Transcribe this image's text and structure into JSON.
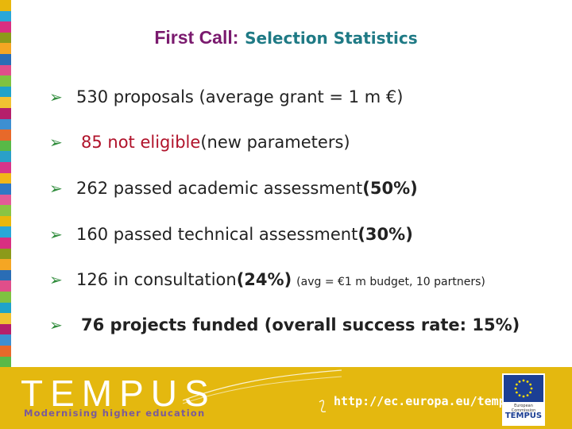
{
  "title": {
    "part1": "First Call:",
    "part2": "Selection Statistics"
  },
  "bullets": [
    {
      "segments": [
        {
          "text": "530 proposals (average grant = 1 m €)",
          "style": "normal"
        }
      ]
    },
    {
      "segments": [
        {
          "text": "85 not eligible",
          "style": "red"
        },
        {
          "text": " (new parameters)",
          "style": "normal"
        }
      ]
    },
    {
      "segments": [
        {
          "text": "262 passed academic assessment ",
          "style": "normal"
        },
        {
          "text": "(50%)",
          "style": "bold"
        }
      ]
    },
    {
      "segments": [
        {
          "text": "160 passed technical assessment ",
          "style": "normal"
        },
        {
          "text": "(30%)",
          "style": "bold"
        }
      ]
    },
    {
      "segments": [
        {
          "text": "126 in consultation ",
          "style": "normal"
        },
        {
          "text": "(24%)",
          "style": "bold"
        },
        {
          "text": "(avg = €1 m budget, 10 partners)",
          "style": "small"
        }
      ]
    },
    {
      "segments": [
        {
          "text": "76 projects funded (overall success rate: 15%)",
          "style": "bold"
        }
      ]
    }
  ],
  "bullet_icon": "arrow-bullet-icon",
  "footer": {
    "logo": "TEMPUS",
    "tagline": "Modernising higher education",
    "url": "http://ec.europa.eu/tempus",
    "eu_text": "European Commission",
    "eu_tempus": "TEMPUS"
  },
  "colors": {
    "title_part1": "#7a1a6e",
    "title_part2": "#1f7a85",
    "arrow": "#2e8b3a",
    "red_text": "#b0122a",
    "footer_bg": "#e4b80f",
    "stripe": [
      "#e8b70c",
      "#29a7d8",
      "#d92f81",
      "#8c9a1a",
      "#f5a623",
      "#2a6db5",
      "#e04e8a",
      "#7fc241",
      "#1fa3c9",
      "#f1c232",
      "#b51f6b",
      "#3d8fd1",
      "#e7692a",
      "#58b947",
      "#2aa0c8",
      "#d8358a",
      "#f2b619",
      "#2f78c4",
      "#e25b96",
      "#89c443",
      "#e8b70c",
      "#29a7d8",
      "#d92f81",
      "#8c9a1a",
      "#f5a623",
      "#2a6db5",
      "#e04e8a",
      "#7fc241",
      "#1fa3c9",
      "#f1c232",
      "#b51f6b",
      "#3d8fd1",
      "#e7692a",
      "#58b947"
    ]
  }
}
